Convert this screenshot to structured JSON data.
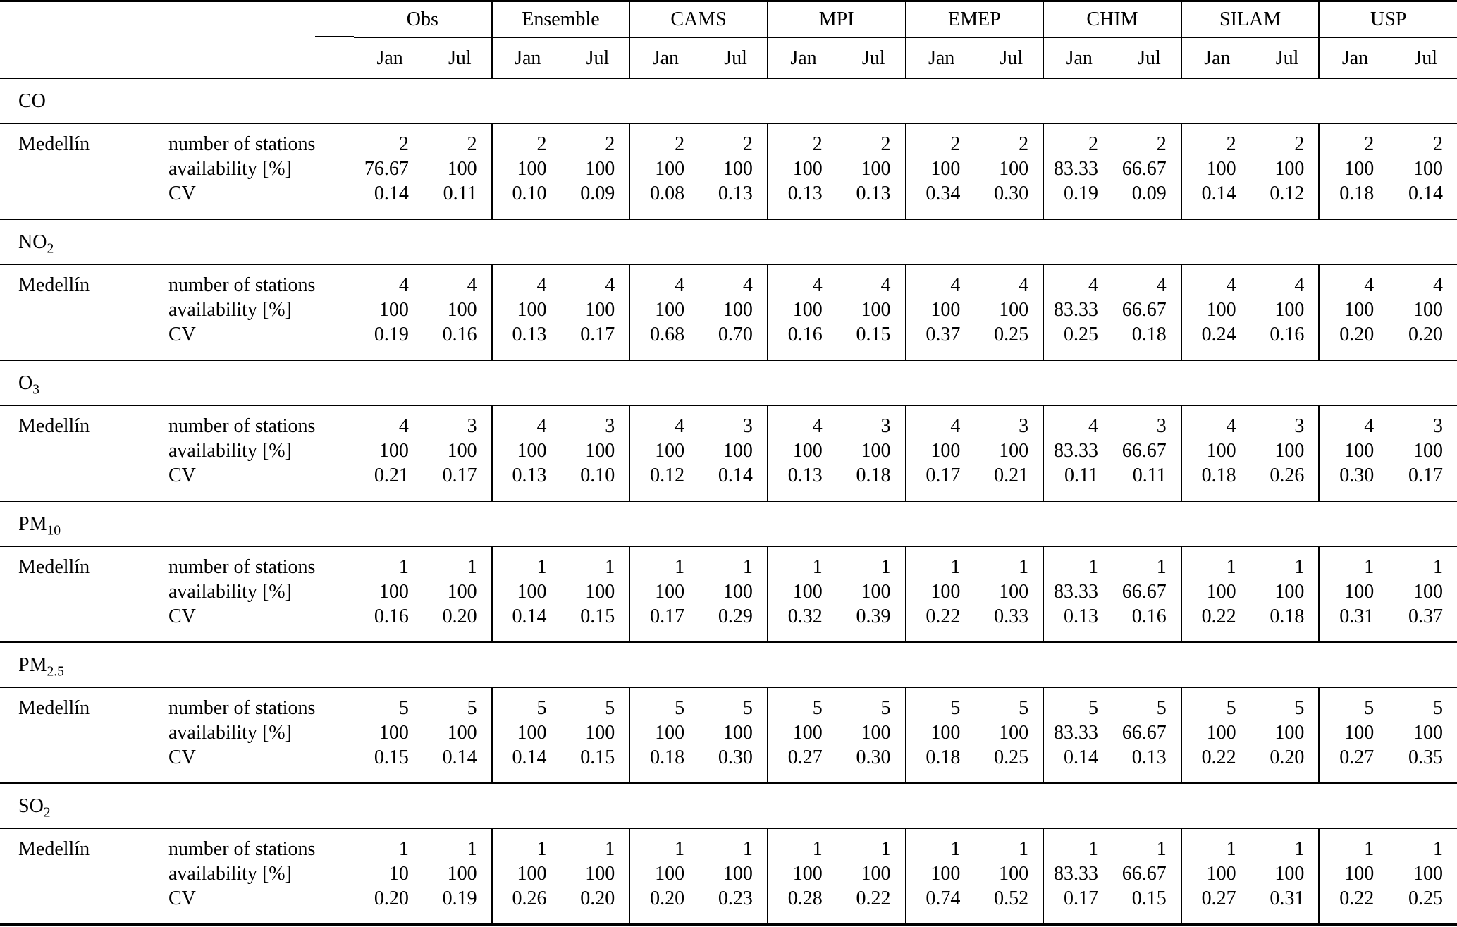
{
  "table": {
    "city": "Medellín",
    "metrics": [
      "number of stations",
      "availability [%]",
      "CV"
    ],
    "groups": [
      "Obs",
      "Ensemble",
      "CAMS",
      "MPI",
      "EMEP",
      "CHIM",
      "SILAM",
      "USP"
    ],
    "subcols": [
      "Jan",
      "Jul"
    ],
    "sections": [
      {
        "pollutant": {
          "base": "CO",
          "sub": ""
        },
        "stations": [
          "2",
          "2",
          "2",
          "2",
          "2",
          "2",
          "2",
          "2",
          "2",
          "2",
          "2",
          "2",
          "2",
          "2",
          "2",
          "2"
        ],
        "availability": [
          "76.67",
          "100",
          "100",
          "100",
          "100",
          "100",
          "100",
          "100",
          "100",
          "100",
          "83.33",
          "66.67",
          "100",
          "100",
          "100",
          "100"
        ],
        "cv": [
          "0.14",
          "0.11",
          "0.10",
          "0.09",
          "0.08",
          "0.13",
          "0.13",
          "0.13",
          "0.34",
          "0.30",
          "0.19",
          "0.09",
          "0.14",
          "0.12",
          "0.18",
          "0.14"
        ]
      },
      {
        "pollutant": {
          "base": "NO",
          "sub": "2"
        },
        "stations": [
          "4",
          "4",
          "4",
          "4",
          "4",
          "4",
          "4",
          "4",
          "4",
          "4",
          "4",
          "4",
          "4",
          "4",
          "4",
          "4"
        ],
        "availability": [
          "100",
          "100",
          "100",
          "100",
          "100",
          "100",
          "100",
          "100",
          "100",
          "100",
          "83.33",
          "66.67",
          "100",
          "100",
          "100",
          "100"
        ],
        "cv": [
          "0.19",
          "0.16",
          "0.13",
          "0.17",
          "0.68",
          "0.70",
          "0.16",
          "0.15",
          "0.37",
          "0.25",
          "0.25",
          "0.18",
          "0.24",
          "0.16",
          "0.20",
          "0.20"
        ]
      },
      {
        "pollutant": {
          "base": "O",
          "sub": "3"
        },
        "stations": [
          "4",
          "3",
          "4",
          "3",
          "4",
          "3",
          "4",
          "3",
          "4",
          "3",
          "4",
          "3",
          "4",
          "3",
          "4",
          "3"
        ],
        "availability": [
          "100",
          "100",
          "100",
          "100",
          "100",
          "100",
          "100",
          "100",
          "100",
          "100",
          "83.33",
          "66.67",
          "100",
          "100",
          "100",
          "100"
        ],
        "cv": [
          "0.21",
          "0.17",
          "0.13",
          "0.10",
          "0.12",
          "0.14",
          "0.13",
          "0.18",
          "0.17",
          "0.21",
          "0.11",
          "0.11",
          "0.18",
          "0.26",
          "0.30",
          "0.17"
        ]
      },
      {
        "pollutant": {
          "base": "PM",
          "sub": "10"
        },
        "stations": [
          "1",
          "1",
          "1",
          "1",
          "1",
          "1",
          "1",
          "1",
          "1",
          "1",
          "1",
          "1",
          "1",
          "1",
          "1",
          "1"
        ],
        "availability": [
          "100",
          "100",
          "100",
          "100",
          "100",
          "100",
          "100",
          "100",
          "100",
          "100",
          "83.33",
          "66.67",
          "100",
          "100",
          "100",
          "100"
        ],
        "cv": [
          "0.16",
          "0.20",
          "0.14",
          "0.15",
          "0.17",
          "0.29",
          "0.32",
          "0.39",
          "0.22",
          "0.33",
          "0.13",
          "0.16",
          "0.22",
          "0.18",
          "0.31",
          "0.37"
        ]
      },
      {
        "pollutant": {
          "base": "PM",
          "sub": "2.5"
        },
        "stations": [
          "5",
          "5",
          "5",
          "5",
          "5",
          "5",
          "5",
          "5",
          "5",
          "5",
          "5",
          "5",
          "5",
          "5",
          "5",
          "5"
        ],
        "availability": [
          "100",
          "100",
          "100",
          "100",
          "100",
          "100",
          "100",
          "100",
          "100",
          "100",
          "83.33",
          "66.67",
          "100",
          "100",
          "100",
          "100"
        ],
        "cv": [
          "0.15",
          "0.14",
          "0.14",
          "0.15",
          "0.18",
          "0.30",
          "0.27",
          "0.30",
          "0.18",
          "0.25",
          "0.14",
          "0.13",
          "0.22",
          "0.20",
          "0.27",
          "0.35"
        ]
      },
      {
        "pollutant": {
          "base": "SO",
          "sub": "2"
        },
        "stations": [
          "1",
          "1",
          "1",
          "1",
          "1",
          "1",
          "1",
          "1",
          "1",
          "1",
          "1",
          "1",
          "1",
          "1",
          "1",
          "1"
        ],
        "availability": [
          "10",
          "100",
          "100",
          "100",
          "100",
          "100",
          "100",
          "100",
          "100",
          "100",
          "83.33",
          "66.67",
          "100",
          "100",
          "100",
          "100"
        ],
        "cv": [
          "0.20",
          "0.19",
          "0.26",
          "0.20",
          "0.20",
          "0.23",
          "0.28",
          "0.22",
          "0.74",
          "0.52",
          "0.17",
          "0.15",
          "0.27",
          "0.31",
          "0.22",
          "0.25"
        ]
      }
    ]
  }
}
